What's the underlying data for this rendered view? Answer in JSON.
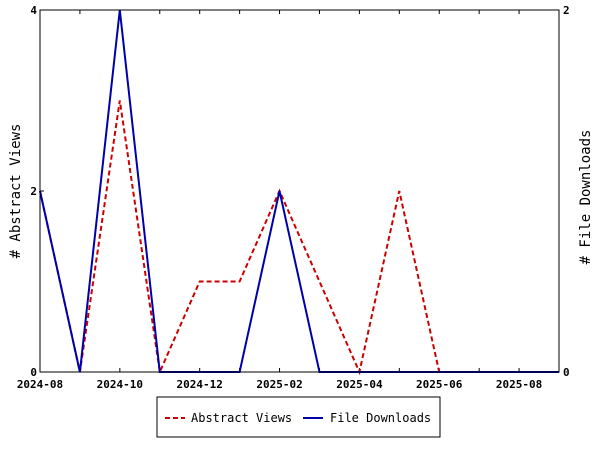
{
  "chart_data": {
    "type": "line",
    "title": "",
    "x": [
      "2024-08",
      "2024-09",
      "2024-10",
      "2024-11",
      "2024-12",
      "2025-01",
      "2025-02",
      "2025-03",
      "2025-04",
      "2025-05",
      "2025-06",
      "2025-07",
      "2025-08",
      "2025-09"
    ],
    "x_ticks": [
      "2024-08",
      "2024-10",
      "2024-12",
      "2025-02",
      "2025-04",
      "2025-06",
      "2025-08"
    ],
    "ylabel_left": "# Abstract Views",
    "ylabel_right": "# File Downloads",
    "ylim_left": [
      0,
      4
    ],
    "ylim_right": [
      0,
      2
    ],
    "yticks_left": [
      "0",
      "2",
      "4"
    ],
    "yticks_right": [
      "0",
      "2"
    ],
    "series": [
      {
        "name": "Abstract Views",
        "axis": "left",
        "color": "#cc0000",
        "dash": "dashed",
        "values": [
          2,
          0,
          3,
          0,
          1,
          1,
          2,
          1,
          0,
          2,
          0,
          0,
          0,
          0
        ]
      },
      {
        "name": "File Downloads",
        "axis": "right",
        "color": "#0000aa",
        "dash": "solid",
        "values": [
          1,
          0,
          2,
          0,
          0,
          0,
          1,
          0,
          0,
          0,
          0,
          0,
          0,
          0
        ]
      }
    ],
    "legend_position": "bottom"
  }
}
